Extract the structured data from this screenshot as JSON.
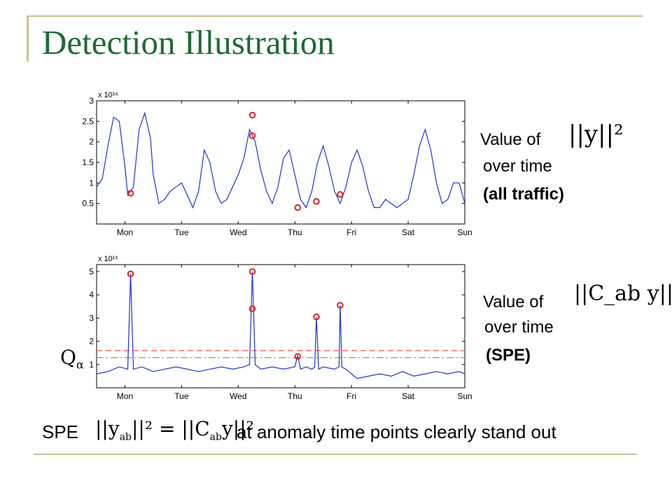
{
  "slide_title": "Detection Illustration",
  "colors": {
    "title": "#1f6b34",
    "series": "#2233cc",
    "marker": "#e02020",
    "threshold_red": "#ff6666",
    "threshold_green": "#66cc66"
  },
  "top_side_label": {
    "prefix": "Value of",
    "formula": "||y||²",
    "line2": "over time",
    "line3": "(all traffic)"
  },
  "bottom_side_label": {
    "prefix": "Value of",
    "formula": "||C_ab y||²",
    "line2": "over time",
    "line3": "(SPE)"
  },
  "threshold_label": {
    "symbol": "Q",
    "subscript": "α"
  },
  "caption": {
    "prefix": "SPE",
    "formula_lhs": "||y",
    "formula_lhs_sub": "ab",
    "formula_eq": "||² = ||C",
    "formula_rhs_sub": "ab",
    "formula_rhs_end": "y||²",
    "suffix": "at anomaly time points clearly stand out"
  },
  "chart_data": [
    {
      "type": "line",
      "x_categories": [
        "Mon",
        "Tue",
        "Wed",
        "Thu",
        "Fri",
        "Sat",
        "Sun"
      ],
      "y_scale_label": "x 10¹⁶",
      "yticks": [
        "3",
        "2.5",
        "2",
        "1.5",
        "1",
        "0.5"
      ],
      "ylim": [
        0,
        3
      ],
      "series": [
        {
          "x": [
            0.0,
            0.1,
            0.2,
            0.3,
            0.4,
            0.5,
            0.55,
            0.65,
            0.75,
            0.85,
            0.95,
            1.0,
            1.1,
            1.2,
            1.3,
            1.4,
            1.5,
            1.6,
            1.7,
            1.8,
            1.9,
            2.0,
            2.1,
            2.2,
            2.3,
            2.4,
            2.5,
            2.6,
            2.7,
            2.8,
            2.9,
            3.0,
            3.1,
            3.2,
            3.3,
            3.4,
            3.5,
            3.6,
            3.7,
            3.8,
            3.9,
            4.0,
            4.1,
            4.2,
            4.3,
            4.4,
            4.5,
            4.6,
            4.7,
            4.8,
            4.9,
            5.0,
            5.1,
            5.2,
            5.3,
            5.4,
            5.5,
            5.6,
            5.7,
            5.8,
            5.9,
            6.0,
            6.1,
            6.2,
            6.3,
            6.4,
            6.5
          ],
          "values": [
            0.9,
            1.1,
            1.9,
            2.6,
            2.5,
            1.4,
            0.7,
            0.9,
            2.3,
            2.7,
            2.1,
            1.2,
            0.5,
            0.6,
            0.8,
            0.9,
            1.0,
            0.7,
            0.4,
            0.8,
            1.8,
            1.5,
            0.8,
            0.5,
            0.6,
            0.9,
            1.2,
            1.6,
            2.3,
            2.0,
            1.3,
            0.8,
            0.5,
            0.9,
            1.6,
            1.8,
            1.2,
            0.6,
            0.4,
            0.8,
            1.5,
            1.9,
            1.4,
            0.8,
            0.5,
            0.9,
            1.5,
            1.8,
            1.4,
            0.8,
            0.4,
            0.4,
            0.6,
            0.5,
            0.4,
            0.5,
            0.6,
            1.2,
            1.9,
            2.3,
            1.8,
            1.0,
            0.5,
            0.6,
            1.0,
            1.0,
            0.5
          ]
        }
      ],
      "anomalies": [
        {
          "x": 0.6,
          "y": 0.75
        },
        {
          "x": 2.75,
          "y": 2.65
        },
        {
          "x": 2.75,
          "y": 2.15
        },
        {
          "x": 3.55,
          "y": 0.4
        },
        {
          "x": 3.88,
          "y": 0.55
        },
        {
          "x": 4.3,
          "y": 0.72
        }
      ]
    },
    {
      "type": "line",
      "x_categories": [
        "Mon",
        "Tue",
        "Wed",
        "Thu",
        "Fri",
        "Sat",
        "Sun"
      ],
      "y_scale_label": "x 10¹⁵",
      "yticks": [
        "5",
        "4",
        "3",
        "2",
        "1"
      ],
      "ylim": [
        0,
        5.3
      ],
      "series": [
        {
          "x": [
            0.0,
            0.2,
            0.4,
            0.55,
            0.6,
            0.65,
            0.8,
            1.0,
            1.2,
            1.4,
            1.6,
            1.8,
            2.0,
            2.2,
            2.4,
            2.6,
            2.7,
            2.75,
            2.8,
            2.9,
            3.1,
            3.3,
            3.5,
            3.55,
            3.6,
            3.7,
            3.8,
            3.85,
            3.88,
            3.92,
            4.0,
            4.2,
            4.28,
            4.3,
            4.33,
            4.4,
            4.6,
            4.8,
            5.0,
            5.2,
            5.4,
            5.6,
            5.8,
            6.0,
            6.2,
            6.4,
            6.5
          ],
          "values": [
            0.6,
            0.7,
            0.9,
            0.8,
            4.9,
            0.8,
            0.9,
            0.7,
            0.8,
            0.9,
            0.8,
            0.7,
            0.8,
            0.9,
            0.8,
            0.9,
            1.0,
            5.0,
            1.0,
            0.8,
            0.9,
            0.8,
            0.9,
            1.4,
            0.8,
            0.9,
            0.8,
            0.9,
            3.05,
            0.8,
            0.9,
            0.8,
            0.9,
            3.55,
            0.9,
            0.8,
            0.4,
            0.5,
            0.6,
            0.5,
            0.7,
            0.5,
            0.6,
            0.7,
            0.6,
            0.7,
            0.6
          ]
        }
      ],
      "anomalies": [
        {
          "x": 0.6,
          "y": 4.9
        },
        {
          "x": 2.75,
          "y": 5.0
        },
        {
          "x": 2.75,
          "y": 3.4
        },
        {
          "x": 3.55,
          "y": 1.35
        },
        {
          "x": 3.88,
          "y": 3.05
        },
        {
          "x": 4.3,
          "y": 3.55
        }
      ],
      "thresholds": [
        {
          "y": 1.6,
          "style": "dashed",
          "color": "red"
        },
        {
          "y": 1.3,
          "style": "dash-dot",
          "color": "green"
        }
      ]
    }
  ]
}
